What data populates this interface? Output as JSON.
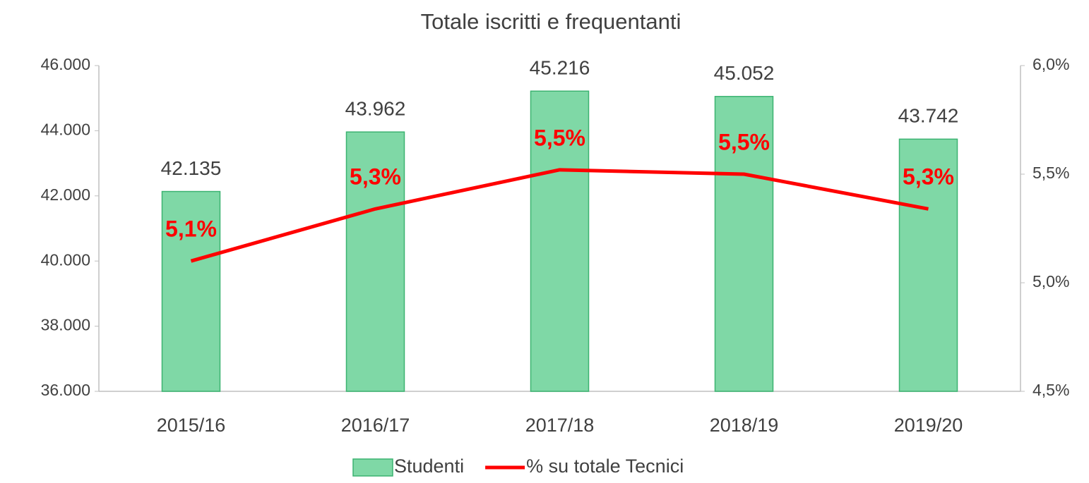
{
  "chart_data": {
    "type": "bar",
    "title": "Totale iscritti e frequentanti",
    "categories": [
      "2015/16",
      "2016/17",
      "2017/18",
      "2018/19",
      "2019/20"
    ],
    "series": [
      {
        "name": "Studenti",
        "type": "bar",
        "color": "#7fd8a6",
        "values": [
          42135,
          43962,
          45216,
          45052,
          43742
        ],
        "value_labels": [
          "42.135",
          "43.962",
          "45.216",
          "45.052",
          "43.742"
        ]
      },
      {
        "name": "% su totale Tecnici",
        "type": "line",
        "axis": "y2",
        "color": "#ff0000",
        "values": [
          5.1,
          5.34,
          5.52,
          5.5,
          5.34
        ],
        "value_labels": [
          "5,1%",
          "5,3%",
          "5,5%",
          "5,5%",
          "5,3%"
        ]
      }
    ],
    "ylim": [
      36000,
      46000
    ],
    "yticks": [
      {
        "value": 36000,
        "label": "36.000"
      },
      {
        "value": 38000,
        "label": "38.000"
      },
      {
        "value": 40000,
        "label": "40.000"
      },
      {
        "value": 42000,
        "label": "42.000"
      },
      {
        "value": 44000,
        "label": "44.000"
      },
      {
        "value": 46000,
        "label": "46.000"
      }
    ],
    "y2lim": [
      4.5,
      6.0
    ],
    "y2ticks": [
      {
        "value": 4.5,
        "label": "4,5%"
      },
      {
        "value": 5.0,
        "label": "5,0%"
      },
      {
        "value": 5.5,
        "label": "5,5%"
      },
      {
        "value": 6.0,
        "label": "6,0%"
      }
    ],
    "legend": "bottom"
  }
}
